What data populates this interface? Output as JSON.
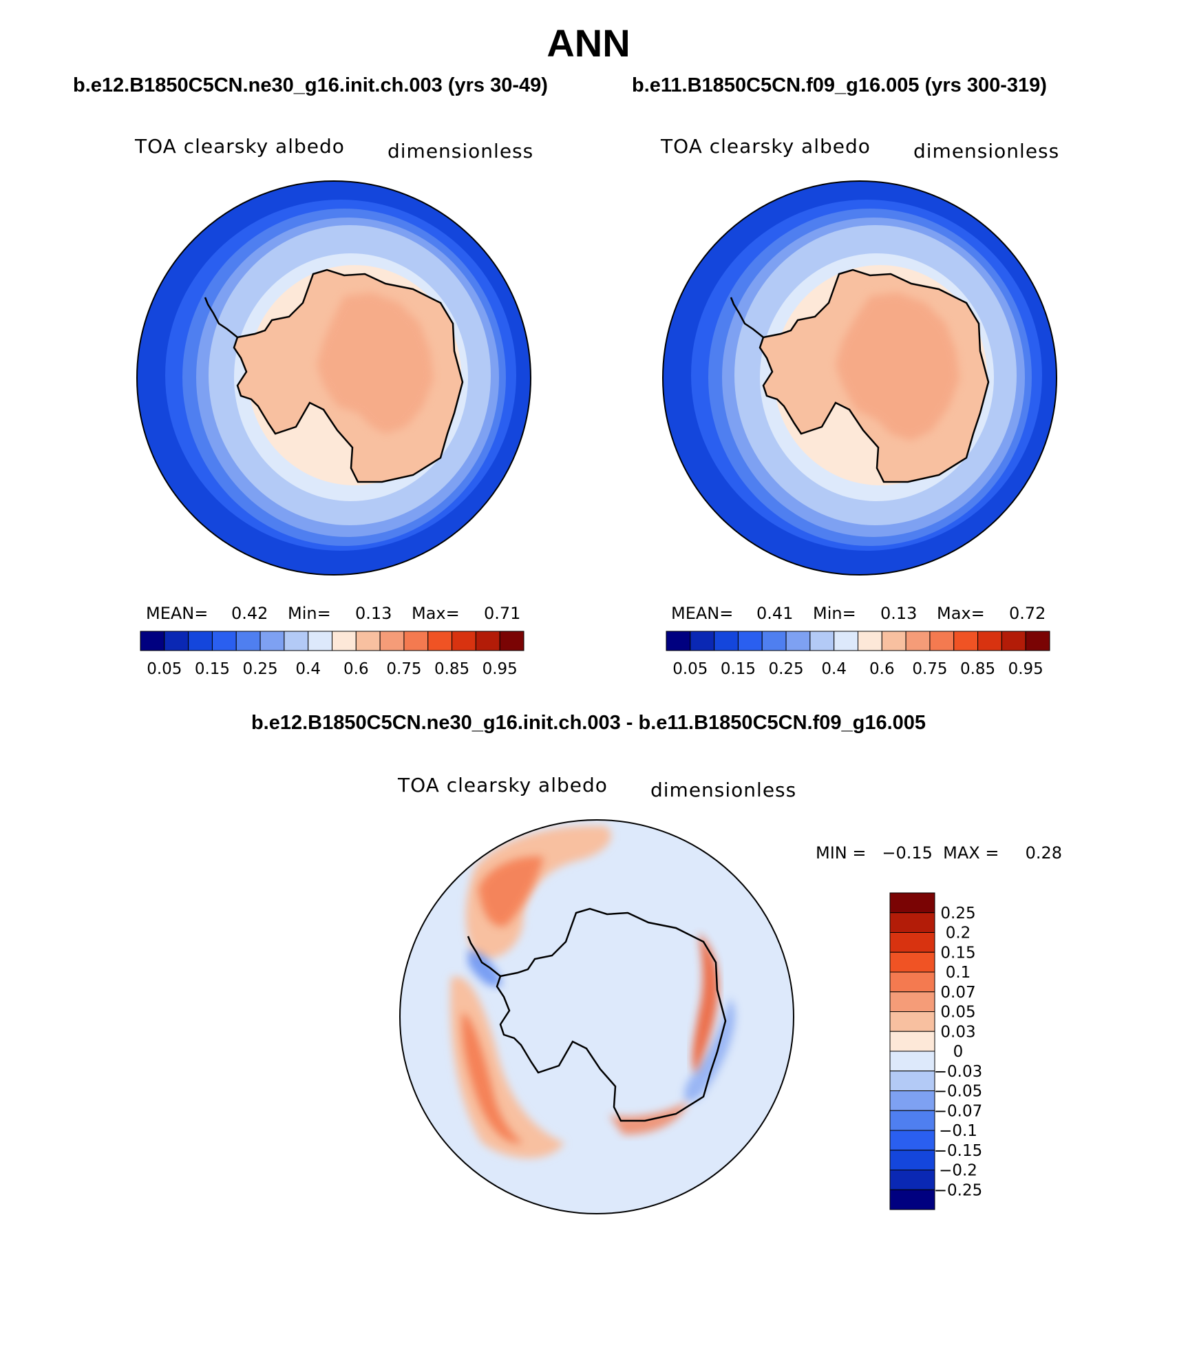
{
  "page_title": "ANN",
  "panels": {
    "left": {
      "case": "b.e12.B1850C5CN.ne30_g16.init.ch.003 (yrs 30-49)",
      "variable": "TOA clearsky albedo",
      "units": "dimensionless",
      "stats": {
        "mean_label": "MEAN=",
        "mean": "0.42",
        "min_label": "Min=",
        "min": "0.13",
        "max_label": "Max=",
        "max": "0.71"
      }
    },
    "right": {
      "case": "b.e11.B1850C5CN.f09_g16.005 (yrs 300-319)",
      "variable": "TOA clearsky albedo",
      "units": "dimensionless",
      "stats": {
        "mean_label": "MEAN=",
        "mean": "0.41",
        "min_label": "Min=",
        "min": "0.13",
        "max_label": "Max=",
        "max": "0.72"
      }
    },
    "diff": {
      "case": "b.e12.B1850C5CN.ne30_g16.init.ch.003 - b.e11.B1850C5CN.f09_g16.005",
      "variable": "TOA clearsky albedo",
      "units": "dimensionless",
      "stats_text": "MIN =   −0.15  MAX =     0.28"
    }
  },
  "chart_data": [
    {
      "type": "heatmap",
      "projection": "south-polar-stereographic",
      "title": "TOA clearsky albedo",
      "subtitle": "b.e12.B1850C5CN.ne30_g16.init.ch.003 (yrs 30-49)",
      "units": "dimensionless",
      "mean": 0.42,
      "min": 0.13,
      "max": 0.71,
      "contour_levels": [
        0.05,
        0.1,
        0.15,
        0.2,
        0.25,
        0.3,
        0.4,
        0.5,
        0.6,
        0.7,
        0.75,
        0.8,
        0.85,
        0.9,
        0.95
      ],
      "colorbar_tick_labels": [
        "0.05",
        "0.15",
        "0.25",
        "0.4",
        "0.6",
        "0.75",
        "0.85",
        "0.95"
      ],
      "colors": [
        "#000080",
        "#0a28b4",
        "#1446dc",
        "#2a5ff0",
        "#4f7ff0",
        "#7ea1f2",
        "#b3caf6",
        "#dde9fb",
        "#fde8d8",
        "#f8c0a0",
        "#f59c78",
        "#f47a50",
        "#f05324",
        "#d83310",
        "#b31c08",
        "#7a0404"
      ]
    },
    {
      "type": "heatmap",
      "projection": "south-polar-stereographic",
      "title": "TOA clearsky albedo",
      "subtitle": "b.e11.B1850C5CN.f09_g16.005 (yrs 300-319)",
      "units": "dimensionless",
      "mean": 0.41,
      "min": 0.13,
      "max": 0.72,
      "contour_levels": [
        0.05,
        0.1,
        0.15,
        0.2,
        0.25,
        0.3,
        0.4,
        0.5,
        0.6,
        0.7,
        0.75,
        0.8,
        0.85,
        0.9,
        0.95
      ],
      "colorbar_tick_labels": [
        "0.05",
        "0.15",
        "0.25",
        "0.4",
        "0.6",
        "0.75",
        "0.85",
        "0.95"
      ],
      "colors": [
        "#000080",
        "#0a28b4",
        "#1446dc",
        "#2a5ff0",
        "#4f7ff0",
        "#7ea1f2",
        "#b3caf6",
        "#dde9fb",
        "#fde8d8",
        "#f8c0a0",
        "#f59c78",
        "#f47a50",
        "#f05324",
        "#d83310",
        "#b31c08",
        "#7a0404"
      ]
    },
    {
      "type": "heatmap",
      "projection": "south-polar-stereographic",
      "title": "TOA clearsky albedo",
      "subtitle": "b.e12.B1850C5CN.ne30_g16.init.ch.003 - b.e11.B1850C5CN.f09_g16.005",
      "units": "dimensionless",
      "min": -0.15,
      "max": 0.28,
      "contour_levels": [
        -0.25,
        -0.2,
        -0.15,
        -0.1,
        -0.07,
        -0.05,
        -0.03,
        0,
        0.03,
        0.05,
        0.07,
        0.1,
        0.15,
        0.2,
        0.25
      ],
      "colorbar_tick_labels": [
        "0.25",
        "0.2",
        "0.15",
        "0.1",
        "0.07",
        "0.05",
        "0.03",
        "0",
        "−0.03",
        "−0.05",
        "−0.07",
        "−0.1",
        "−0.15",
        "−0.2",
        "−0.25"
      ],
      "colors_top_to_bottom": [
        "#7a0404",
        "#b31c08",
        "#d83310",
        "#f05324",
        "#f47a50",
        "#f59c78",
        "#f8c0a0",
        "#fde8d8",
        "#dde9fb",
        "#b3caf6",
        "#7ea1f2",
        "#4f7ff0",
        "#2a5ff0",
        "#1446dc",
        "#0a28b4",
        "#000080"
      ]
    }
  ]
}
